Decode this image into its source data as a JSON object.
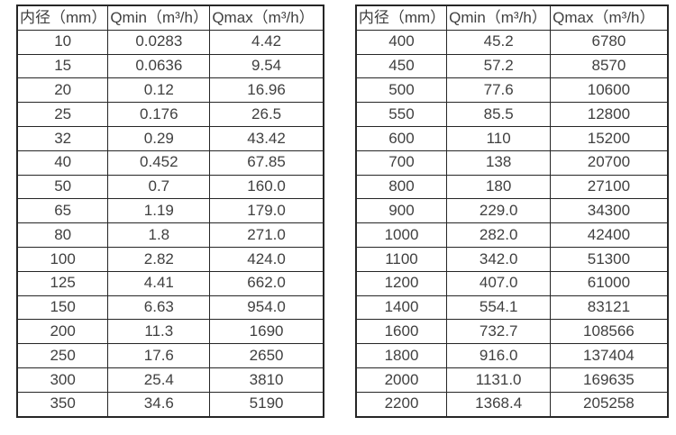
{
  "colors": {
    "background": "#ffffff",
    "text": "#404040",
    "border": "#262626"
  },
  "tables": [
    {
      "name": "small-diameter-flow-range",
      "headers": [
        "内径（mm）",
        "Qmin（m³/h）",
        "Qmax（m³/h）"
      ],
      "rows": [
        [
          "10",
          "0.0283",
          "4.42"
        ],
        [
          "15",
          "0.0636",
          "9.54"
        ],
        [
          "20",
          "0.12",
          "16.96"
        ],
        [
          "25",
          "0.176",
          "26.5"
        ],
        [
          "32",
          "0.29",
          "43.42"
        ],
        [
          "40",
          "0.452",
          "67.85"
        ],
        [
          "50",
          "0.7",
          "160.0"
        ],
        [
          "65",
          "1.19",
          "179.0"
        ],
        [
          "80",
          "1.8",
          "271.0"
        ],
        [
          "100",
          "2.82",
          "424.0"
        ],
        [
          "125",
          "4.41",
          "662.0"
        ],
        [
          "150",
          "6.63",
          "954.0"
        ],
        [
          "200",
          "11.3",
          "1690"
        ],
        [
          "250",
          "17.6",
          "2650"
        ],
        [
          "300",
          "25.4",
          "3810"
        ],
        [
          "350",
          "34.6",
          "5190"
        ]
      ]
    },
    {
      "name": "large-diameter-flow-range",
      "headers": [
        "内径（mm）",
        "Qmin（m³/h）",
        "Qmax（m³/h）"
      ],
      "rows": [
        [
          "400",
          "45.2",
          "6780"
        ],
        [
          "450",
          "57.2",
          "8570"
        ],
        [
          "500",
          "77.6",
          "10600"
        ],
        [
          "550",
          "85.5",
          "12800"
        ],
        [
          "600",
          "110",
          "15200"
        ],
        [
          "700",
          "138",
          "20700"
        ],
        [
          "800",
          "180",
          "27100"
        ],
        [
          "900",
          "229.0",
          "34300"
        ],
        [
          "1000",
          "282.0",
          "42400"
        ],
        [
          "1100",
          "342.0",
          "51300"
        ],
        [
          "1200",
          "407.0",
          "61000"
        ],
        [
          "1400",
          "554.1",
          "83121"
        ],
        [
          "1600",
          "732.7",
          "108566"
        ],
        [
          "1800",
          "916.0",
          "137404"
        ],
        [
          "2000",
          "1131.0",
          "169635"
        ],
        [
          "2200",
          "1368.4",
          "205258"
        ]
      ]
    }
  ]
}
